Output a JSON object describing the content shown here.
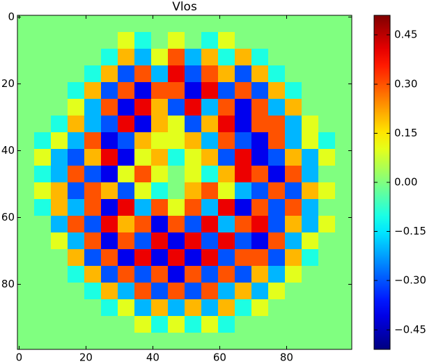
{
  "chart_data": {
    "type": "heatmap",
    "title": "Vlos",
    "x": [
      2,
      7,
      12,
      17,
      22,
      27,
      32,
      37,
      42,
      47,
      52,
      57,
      62,
      67,
      72,
      77,
      82,
      87,
      92,
      97
    ],
    "y": [
      2,
      7,
      12,
      17,
      22,
      27,
      32,
      37,
      42,
      47,
      52,
      57,
      62,
      67,
      72,
      77,
      82,
      87,
      92,
      97
    ],
    "values": [
      [
        0,
        0,
        0,
        0,
        0,
        0,
        0,
        0,
        0,
        0,
        0,
        0,
        0,
        0,
        0,
        0,
        0,
        0,
        0,
        0
      ],
      [
        0,
        0,
        0,
        0,
        0,
        0,
        0.1,
        -0.1,
        0,
        0.1,
        0,
        -0.1,
        0.1,
        0,
        0,
        0,
        0,
        0,
        0,
        0
      ],
      [
        0,
        0,
        0,
        0,
        0,
        -0.1,
        0.2,
        -0.2,
        0.1,
        0.3,
        -0.2,
        0.2,
        -0.1,
        0.2,
        -0.1,
        0,
        0,
        0,
        0,
        0
      ],
      [
        0,
        0,
        0,
        0,
        -0.1,
        0.2,
        -0.3,
        0.3,
        -0.2,
        0.4,
        -0.3,
        0.3,
        0.2,
        -0.3,
        0.2,
        -0.1,
        0,
        0,
        0,
        0
      ],
      [
        0,
        0,
        0,
        -0.1,
        0.2,
        -0.3,
        0.3,
        -0.4,
        0.3,
        0.3,
        -0.4,
        0.4,
        -0.3,
        0.3,
        -0.3,
        0.2,
        -0.1,
        0,
        0,
        0
      ],
      [
        0,
        0,
        0,
        0.1,
        -0.2,
        0.3,
        -0.4,
        0.4,
        0.2,
        -0.3,
        0.4,
        -0.2,
        0.3,
        -0.4,
        0.3,
        -0.2,
        0.2,
        0,
        0,
        0
      ],
      [
        0,
        0,
        -0.1,
        0.2,
        -0.2,
        -0.3,
        0.4,
        -0.4,
        0.2,
        0.1,
        -0.3,
        0.2,
        0.4,
        -0.4,
        0.3,
        0.3,
        -0.2,
        0.1,
        0,
        0
      ],
      [
        0,
        -0.1,
        0.1,
        -0.2,
        0.3,
        -0.4,
        -0.3,
        0.2,
        0.1,
        0.1,
        0.2,
        -0.2,
        0.3,
        -0.3,
        -0.4,
        0.3,
        -0.2,
        0.1,
        -0.1,
        0
      ],
      [
        0,
        0.1,
        -0.2,
        -0.3,
        0.2,
        0.4,
        -0.4,
        0.1,
        0.2,
        -0.1,
        0.1,
        0.2,
        -0.3,
        0.4,
        -0.4,
        -0.3,
        0.2,
        -0.2,
        0.1,
        0
      ],
      [
        0,
        -0.1,
        -0.2,
        0.3,
        -0.3,
        -0.4,
        0.1,
        0.3,
        0.1,
        0,
        0.1,
        -0.1,
        0.2,
        0.4,
        0.3,
        -0.4,
        0.3,
        -0.2,
        0,
        0
      ],
      [
        0,
        0.1,
        0.2,
        -0.3,
        0.3,
        0.2,
        -0.3,
        0.1,
        -0.1,
        0,
        0.2,
        0.3,
        0.1,
        -0.2,
        -0.3,
        0.3,
        -0.3,
        0.2,
        0.1,
        0
      ],
      [
        0,
        -0.1,
        0.2,
        -0.2,
        0.3,
        -0.4,
        0.4,
        -0.2,
        0.3,
        0.1,
        0.3,
        -0.2,
        0.4,
        -0.4,
        0.3,
        -0.3,
        0.3,
        -0.2,
        0,
        0
      ],
      [
        0,
        0,
        -0.2,
        0.3,
        -0.3,
        0.4,
        0.2,
        0.3,
        -0.4,
        0.3,
        -0.3,
        0.4,
        -0.2,
        0.3,
        0.4,
        -0.3,
        0.2,
        -0.2,
        0.1,
        0
      ],
      [
        0,
        0,
        0.1,
        -0.2,
        0.3,
        -0.4,
        0.3,
        -0.3,
        0.4,
        -0.4,
        0.4,
        -0.3,
        0.4,
        -0.3,
        -0.4,
        0.3,
        -0.2,
        0.1,
        0,
        0
      ],
      [
        0,
        0,
        0,
        0.2,
        -0.3,
        0.3,
        -0.4,
        0.4,
        -0.4,
        0.4,
        -0.4,
        0.4,
        -0.3,
        0.3,
        0.3,
        -0.3,
        0.2,
        -0.1,
        0,
        0
      ],
      [
        0,
        0,
        0,
        -0.1,
        0.2,
        -0.3,
        0.3,
        -0.3,
        0.3,
        -0.4,
        0.3,
        -0.3,
        0.3,
        -0.3,
        0.2,
        -0.2,
        0.1,
        0,
        0,
        0
      ],
      [
        0,
        0,
        0,
        0,
        -0.1,
        0.2,
        -0.2,
        0.3,
        -0.3,
        0.3,
        -0.3,
        0.3,
        -0.2,
        0.2,
        -0.2,
        0.1,
        0,
        0,
        0,
        0
      ],
      [
        0,
        0,
        0,
        0,
        0,
        -0.1,
        0.1,
        -0.2,
        0.2,
        -0.2,
        0.2,
        -0.2,
        0.2,
        -0.1,
        0.1,
        0,
        0,
        0,
        0,
        0
      ],
      [
        0,
        0,
        0,
        0,
        0,
        0,
        0,
        0.1,
        -0.1,
        0.1,
        -0.1,
        0.1,
        -0.1,
        0,
        0,
        0,
        0,
        0,
        0,
        0
      ],
      [
        0,
        0,
        0,
        0,
        0,
        0,
        0,
        0,
        0,
        0,
        0,
        0,
        0,
        0,
        0,
        0,
        0,
        0,
        0,
        0
      ]
    ],
    "xlim": [
      -0.5,
      99.5
    ],
    "ylim": [
      99.5,
      -0.5
    ],
    "xticks": [
      0,
      20,
      40,
      60,
      80
    ],
    "yticks": [
      0,
      20,
      40,
      60,
      80
    ],
    "colormap": "jet",
    "clim": [
      -0.51,
      0.51
    ],
    "cticks": [
      {
        "value": -0.45,
        "label": "−0.45"
      },
      {
        "value": -0.3,
        "label": "−0.30"
      },
      {
        "value": -0.15,
        "label": "−0.15"
      },
      {
        "value": 0,
        "label": "0.00"
      },
      0.15,
      {
        "value": 0.3,
        "label": "0.30"
      },
      0.45
    ]
  }
}
